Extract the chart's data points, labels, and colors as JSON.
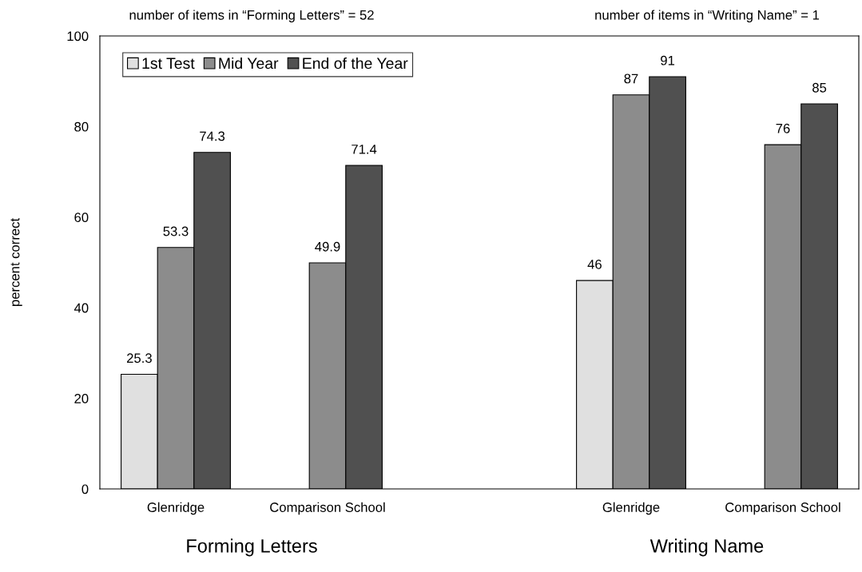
{
  "chart_data": {
    "type": "bar",
    "ylabel": "percent correct",
    "categories": [
      "Glenridge",
      "Comparison School",
      null,
      "Glenridge",
      "Comparison School"
    ],
    "series": [
      {
        "name": "1st Test",
        "color": "#e0e0e0",
        "values": [
          25.3,
          null,
          null,
          46,
          null
        ]
      },
      {
        "name": "Mid Year",
        "color": "#8c8c8c",
        "values": [
          53.3,
          49.9,
          null,
          87,
          76
        ]
      },
      {
        "name": "End of the Year",
        "color": "#505050",
        "values": [
          74.3,
          71.4,
          null,
          91,
          85
        ]
      }
    ],
    "ylim": [
      0,
      100
    ],
    "yticks": [
      0,
      20,
      40,
      60,
      80,
      100
    ],
    "grid": false,
    "legend": "top left",
    "data_labels": true,
    "annotations": [
      "number of items in “Forming Letters” = 52",
      "number of items in “Writing Name” = 1",
      "Forming Letters",
      "Writing Name"
    ]
  }
}
